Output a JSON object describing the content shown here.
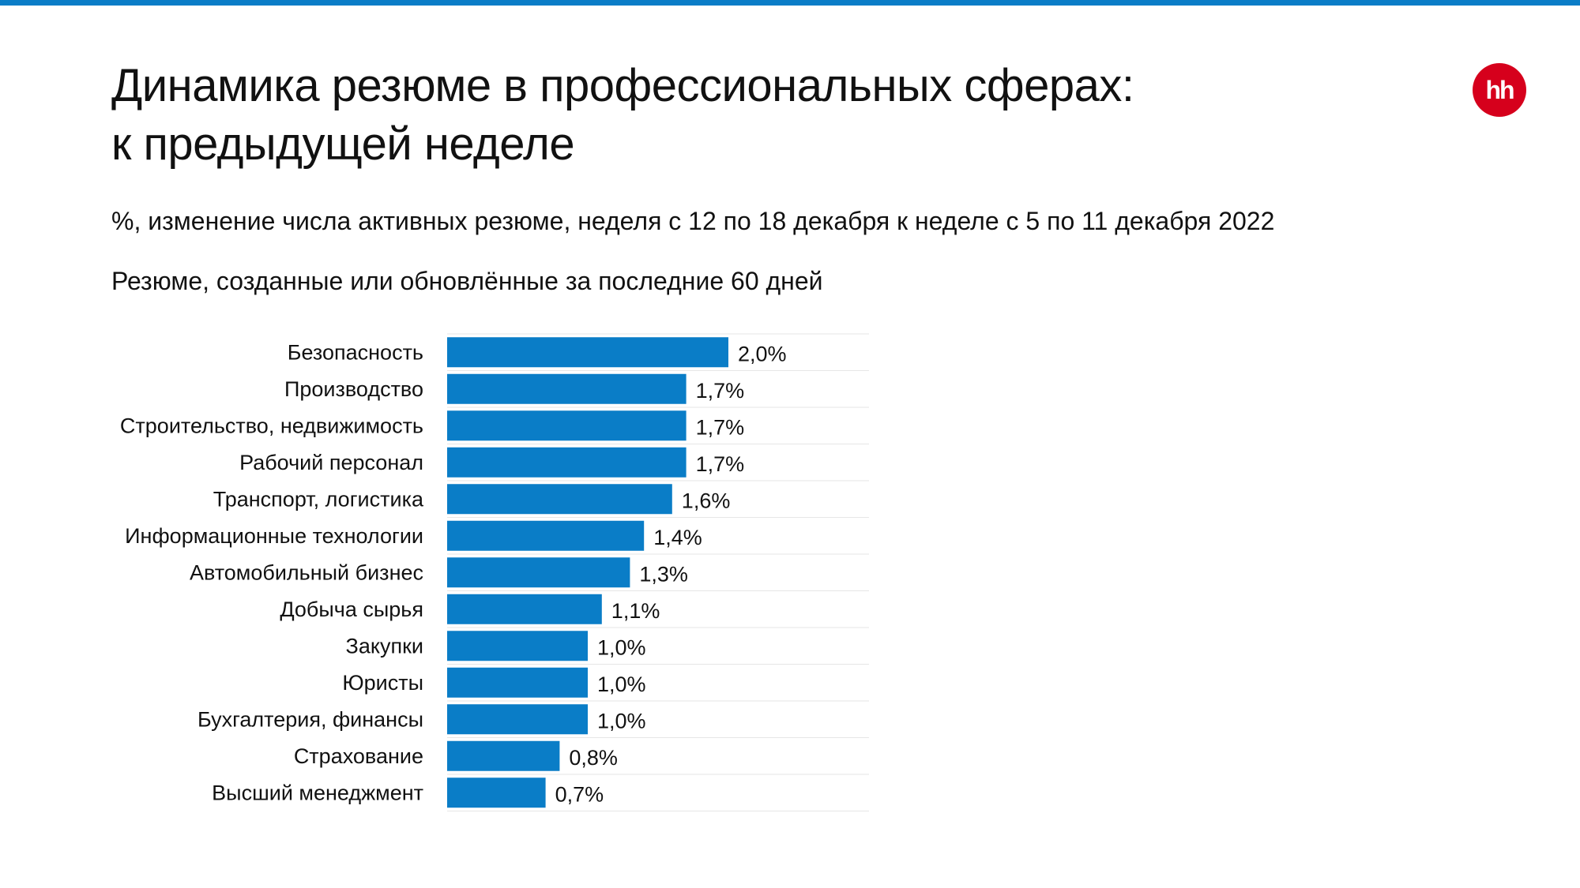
{
  "header": {
    "title_line1": "Динамика резюме в профессиональных сферах:",
    "title_line2": "к предыдущей неделе",
    "subtitle": "%, изменение числа активных резюме, неделя с 12 по 18 декабря к неделе с 5 по 11 декабря 2022",
    "caption": "Резюме, созданные или обновлённые за последние 60 дней"
  },
  "logo": {
    "text": "hh",
    "color": "#d6001c"
  },
  "colors": {
    "accent": "#0a7dc7",
    "bar": "#0a7dc7",
    "grid": "#e6e6e6"
  },
  "chart_data": {
    "type": "bar",
    "orientation": "horizontal",
    "categories": [
      "Безопасность",
      "Производство",
      "Строительство, недвижимость",
      "Рабочий персонал",
      "Транспорт, логистика",
      "Информационные технологии",
      "Автомобильный бизнес",
      "Добыча сырья",
      "Закупки",
      "Юристы",
      "Бухгалтерия, финансы",
      "Страхование",
      "Высший менеджмент"
    ],
    "values": [
      2.0,
      1.7,
      1.7,
      1.7,
      1.6,
      1.4,
      1.3,
      1.1,
      1.0,
      1.0,
      1.0,
      0.8,
      0.7
    ],
    "value_labels": [
      "2,0%",
      "1,7%",
      "1,7%",
      "1,7%",
      "1,6%",
      "1,4%",
      "1,3%",
      "1,1%",
      "1,0%",
      "1,0%",
      "1,0%",
      "0,8%",
      "0,7%"
    ],
    "xlim": [
      0,
      3.0
    ],
    "grid": true
  }
}
